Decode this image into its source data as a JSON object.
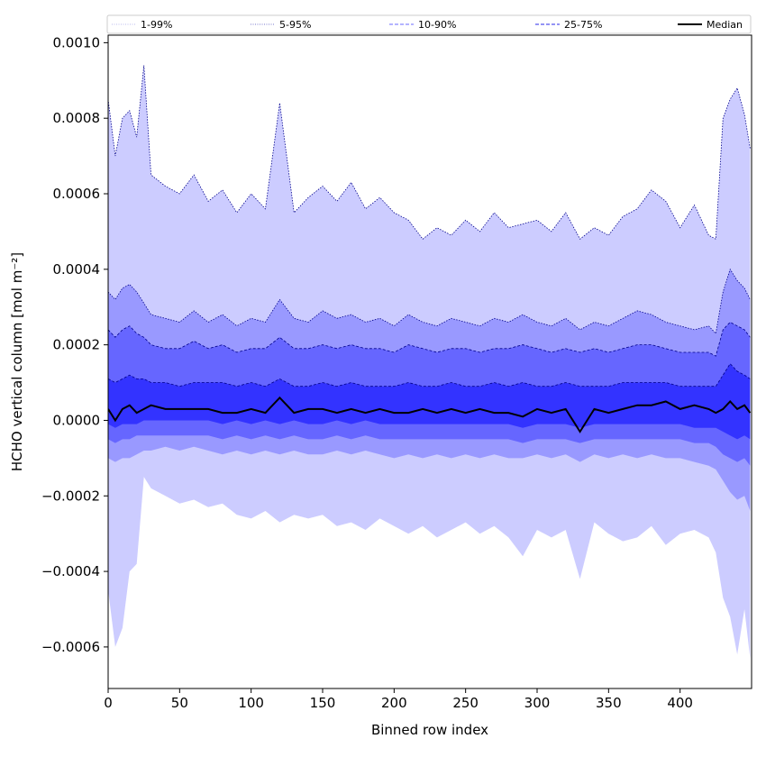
{
  "chart_data": {
    "type": "area",
    "xlabel": "Binned row index",
    "ylabel": "HCHO vertical column [mol m⁻²]",
    "xlim": [
      0,
      450
    ],
    "ylim": [
      -0.00071,
      0.00102
    ],
    "x_ticks": [
      0,
      50,
      100,
      150,
      200,
      250,
      300,
      350,
      400
    ],
    "x_tick_labels": [
      "0",
      "50",
      "100",
      "150",
      "200",
      "250",
      "300",
      "350",
      "400"
    ],
    "y_ticks": [
      -0.0006,
      -0.0004,
      -0.0002,
      0.0,
      0.0002,
      0.0004,
      0.0006,
      0.0008,
      0.001
    ],
    "y_tick_labels": [
      "−0.0006",
      "−0.0004",
      "−0.0002",
      "0.0000",
      "0.0002",
      "0.0004",
      "0.0006",
      "0.0008",
      "0.0010"
    ],
    "grid": false,
    "legend_position": "top",
    "x": [
      0,
      5,
      10,
      15,
      20,
      25,
      30,
      40,
      50,
      60,
      70,
      80,
      90,
      100,
      110,
      120,
      130,
      140,
      150,
      160,
      170,
      180,
      190,
      200,
      210,
      220,
      230,
      240,
      250,
      260,
      270,
      280,
      290,
      300,
      310,
      320,
      330,
      340,
      350,
      360,
      370,
      380,
      390,
      400,
      410,
      420,
      425,
      430,
      435,
      440,
      445,
      449
    ],
    "bands": [
      {
        "name": "1-99%",
        "fill": "#ccccff",
        "lower": [
          -0.00045,
          -0.0006,
          -0.00055,
          -0.0004,
          -0.00038,
          -0.00015,
          -0.00018,
          -0.0002,
          -0.00022,
          -0.00021,
          -0.00023,
          -0.00022,
          -0.00025,
          -0.00026,
          -0.00024,
          -0.00027,
          -0.00025,
          -0.00026,
          -0.00025,
          -0.00028,
          -0.00027,
          -0.00029,
          -0.00026,
          -0.00028,
          -0.0003,
          -0.00028,
          -0.00031,
          -0.00029,
          -0.00027,
          -0.0003,
          -0.00028,
          -0.00031,
          -0.00036,
          -0.00029,
          -0.00031,
          -0.00029,
          -0.00042,
          -0.00027,
          -0.0003,
          -0.00032,
          -0.00031,
          -0.00028,
          -0.00033,
          -0.0003,
          -0.00029,
          -0.00031,
          -0.00035,
          -0.00047,
          -0.00052,
          -0.00062,
          -0.0005,
          -0.00063
        ],
        "upper": [
          0.00085,
          0.0007,
          0.0008,
          0.00082,
          0.00075,
          0.00094,
          0.00065,
          0.00062,
          0.0006,
          0.00065,
          0.00058,
          0.00061,
          0.00055,
          0.0006,
          0.00056,
          0.00084,
          0.00055,
          0.00059,
          0.00062,
          0.00058,
          0.00063,
          0.00056,
          0.00059,
          0.00055,
          0.00053,
          0.00048,
          0.00051,
          0.00049,
          0.00053,
          0.0005,
          0.00055,
          0.00051,
          0.00052,
          0.00053,
          0.0005,
          0.00055,
          0.00048,
          0.00051,
          0.00049,
          0.00054,
          0.00056,
          0.00061,
          0.00058,
          0.00051,
          0.00057,
          0.00049,
          0.00048,
          0.0008,
          0.00085,
          0.00088,
          0.00081,
          0.00072
        ]
      },
      {
        "name": "5-95%",
        "fill": "#9999ff",
        "lower": [
          -0.0001,
          -0.00011,
          -0.0001,
          -0.0001,
          -9e-05,
          -8e-05,
          -8e-05,
          -7e-05,
          -8e-05,
          -7e-05,
          -8e-05,
          -9e-05,
          -8e-05,
          -9e-05,
          -8e-05,
          -9e-05,
          -8e-05,
          -9e-05,
          -9e-05,
          -8e-05,
          -9e-05,
          -8e-05,
          -9e-05,
          -0.0001,
          -9e-05,
          -0.0001,
          -9e-05,
          -0.0001,
          -9e-05,
          -0.0001,
          -9e-05,
          -0.0001,
          -0.0001,
          -9e-05,
          -0.0001,
          -9e-05,
          -0.00011,
          -9e-05,
          -0.0001,
          -9e-05,
          -0.0001,
          -9e-05,
          -0.0001,
          -0.0001,
          -0.00011,
          -0.00012,
          -0.00013,
          -0.00016,
          -0.00019,
          -0.00021,
          -0.0002,
          -0.00024
        ],
        "upper": [
          0.00034,
          0.00032,
          0.00035,
          0.00036,
          0.00034,
          0.00031,
          0.00028,
          0.00027,
          0.00026,
          0.00029,
          0.00026,
          0.00028,
          0.00025,
          0.00027,
          0.00026,
          0.00032,
          0.00027,
          0.00026,
          0.00029,
          0.00027,
          0.00028,
          0.00026,
          0.00027,
          0.00025,
          0.00028,
          0.00026,
          0.00025,
          0.00027,
          0.00026,
          0.00025,
          0.00027,
          0.00026,
          0.00028,
          0.00026,
          0.00025,
          0.00027,
          0.00024,
          0.00026,
          0.00025,
          0.00027,
          0.00029,
          0.00028,
          0.00026,
          0.00025,
          0.00024,
          0.00025,
          0.00023,
          0.00034,
          0.0004,
          0.00037,
          0.00035,
          0.00032
        ]
      },
      {
        "name": "10-90%",
        "fill": "#6666ff",
        "lower": [
          -5e-05,
          -6e-05,
          -5e-05,
          -5e-05,
          -4e-05,
          -4e-05,
          -4e-05,
          -4e-05,
          -4e-05,
          -4e-05,
          -4e-05,
          -5e-05,
          -4e-05,
          -5e-05,
          -4e-05,
          -5e-05,
          -4e-05,
          -5e-05,
          -5e-05,
          -4e-05,
          -5e-05,
          -4e-05,
          -5e-05,
          -5e-05,
          -5e-05,
          -5e-05,
          -5e-05,
          -5e-05,
          -5e-05,
          -5e-05,
          -5e-05,
          -5e-05,
          -6e-05,
          -5e-05,
          -5e-05,
          -5e-05,
          -6e-05,
          -5e-05,
          -5e-05,
          -5e-05,
          -5e-05,
          -5e-05,
          -5e-05,
          -5e-05,
          -6e-05,
          -6e-05,
          -7e-05,
          -9e-05,
          -0.0001,
          -0.00011,
          -0.0001,
          -0.00012
        ],
        "upper": [
          0.00024,
          0.00022,
          0.00024,
          0.00025,
          0.00023,
          0.00022,
          0.0002,
          0.00019,
          0.00019,
          0.00021,
          0.00019,
          0.0002,
          0.00018,
          0.00019,
          0.00019,
          0.00022,
          0.00019,
          0.00019,
          0.0002,
          0.00019,
          0.0002,
          0.00019,
          0.00019,
          0.00018,
          0.0002,
          0.00019,
          0.00018,
          0.00019,
          0.00019,
          0.00018,
          0.00019,
          0.00019,
          0.0002,
          0.00019,
          0.00018,
          0.00019,
          0.00018,
          0.00019,
          0.00018,
          0.00019,
          0.0002,
          0.0002,
          0.00019,
          0.00018,
          0.00018,
          0.00018,
          0.00017,
          0.00024,
          0.00026,
          0.00025,
          0.00024,
          0.00022
        ]
      },
      {
        "name": "25-75%",
        "fill": "#3333ff",
        "lower": [
          -1e-05,
          -2e-05,
          -1e-05,
          -1e-05,
          -1e-05,
          0.0,
          0.0,
          0.0,
          0.0,
          0.0,
          0.0,
          -1e-05,
          0.0,
          -1e-05,
          0.0,
          -1e-05,
          0.0,
          -1e-05,
          -1e-05,
          0.0,
          -1e-05,
          0.0,
          -1e-05,
          -1e-05,
          -1e-05,
          -1e-05,
          -1e-05,
          -1e-05,
          -1e-05,
          -1e-05,
          -1e-05,
          -1e-05,
          -2e-05,
          -1e-05,
          -1e-05,
          -1e-05,
          -2e-05,
          -1e-05,
          -1e-05,
          -1e-05,
          -1e-05,
          -1e-05,
          -1e-05,
          -1e-05,
          -2e-05,
          -2e-05,
          -2e-05,
          -3e-05,
          -4e-05,
          -5e-05,
          -4e-05,
          -5e-05
        ],
        "upper": [
          0.00011,
          0.0001,
          0.00011,
          0.00012,
          0.00011,
          0.00011,
          0.0001,
          0.0001,
          9e-05,
          0.0001,
          0.0001,
          0.0001,
          9e-05,
          0.0001,
          9e-05,
          0.00011,
          9e-05,
          9e-05,
          0.0001,
          9e-05,
          0.0001,
          9e-05,
          9e-05,
          9e-05,
          0.0001,
          9e-05,
          9e-05,
          0.0001,
          9e-05,
          9e-05,
          0.0001,
          9e-05,
          0.0001,
          9e-05,
          9e-05,
          0.0001,
          9e-05,
          9e-05,
          9e-05,
          0.0001,
          0.0001,
          0.0001,
          0.0001,
          9e-05,
          9e-05,
          9e-05,
          9e-05,
          0.00012,
          0.00015,
          0.00013,
          0.00012,
          0.00011
        ]
      }
    ],
    "median": {
      "name": "Median",
      "color": "#000000",
      "values": [
        3e-05,
        0.0,
        3e-05,
        4e-05,
        2e-05,
        3e-05,
        4e-05,
        3e-05,
        3e-05,
        3e-05,
        3e-05,
        2e-05,
        2e-05,
        3e-05,
        2e-05,
        6e-05,
        2e-05,
        3e-05,
        3e-05,
        2e-05,
        3e-05,
        2e-05,
        3e-05,
        2e-05,
        2e-05,
        3e-05,
        2e-05,
        3e-05,
        2e-05,
        3e-05,
        2e-05,
        2e-05,
        1e-05,
        3e-05,
        2e-05,
        3e-05,
        -3e-05,
        3e-05,
        2e-05,
        3e-05,
        4e-05,
        4e-05,
        5e-05,
        3e-05,
        4e-05,
        3e-05,
        2e-05,
        3e-05,
        5e-05,
        3e-05,
        4e-05,
        2e-05
      ]
    },
    "legend": [
      {
        "label": "1-99%",
        "style": "dotted",
        "color": "#bbbbee"
      },
      {
        "label": "5-95%",
        "style": "dotted",
        "color": "#7777cc"
      },
      {
        "label": "10-90%",
        "style": "dashed",
        "color": "#8888ff"
      },
      {
        "label": "25-75%",
        "style": "dashed",
        "color": "#5555ee"
      },
      {
        "label": "Median",
        "style": "solid",
        "color": "#000000"
      }
    ]
  }
}
